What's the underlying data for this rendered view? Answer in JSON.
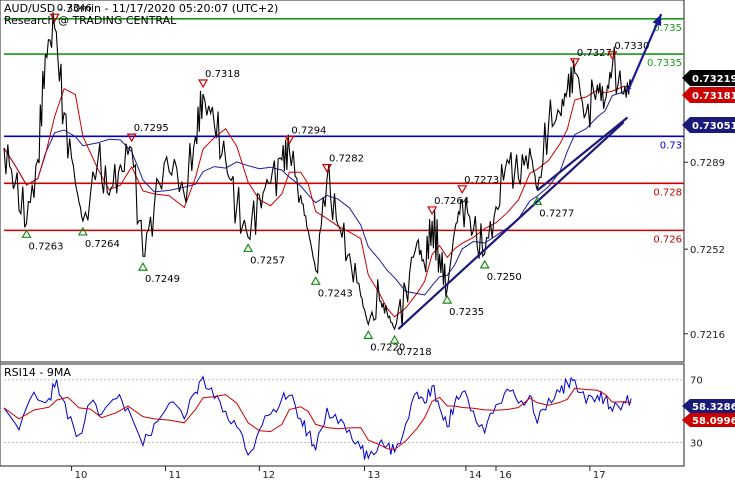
{
  "header": {
    "title": "AUD/USD - 30min - 11/17/2020 05:20:07 (UTC+2)",
    "watermark": "Research @ TRADING CENTRAL"
  },
  "colors": {
    "price": "#000000",
    "ma": "#cc0000",
    "ma_slow": "#1c1c9c",
    "level_green": "#1a9a1a",
    "level_blue": "#0000cc",
    "level_red": "#cc0000",
    "trend": "#1a1a7a",
    "arrow": "#1a1a9a",
    "rsi": "#0000cc",
    "rsi_ma": "#cc0000",
    "tag_price": "#000000",
    "tag_blue": "#1a1a7a",
    "tag_red": "#cc0000"
  },
  "chart_data": [
    {
      "type": "candlestick-line",
      "title": "AUD/USD - 30min - 11/17/2020 05:20:07 (UTC+2)",
      "x_ticks": [
        "10",
        "11",
        "12",
        "13",
        "14",
        "16",
        "17"
      ],
      "y_ticks": [
        "0.7289",
        "0.7252",
        "0.7216"
      ],
      "ylim": [
        0.7204,
        0.7358
      ],
      "levels": [
        {
          "value": 0.735,
          "label": "0.735",
          "color": "green"
        },
        {
          "value": 0.7335,
          "label": "0.7335",
          "color": "green"
        },
        {
          "value": 0.73,
          "label": "0.73",
          "color": "blue"
        },
        {
          "value": 0.728,
          "label": "0.728",
          "color": "red"
        },
        {
          "value": 0.726,
          "label": "0.726",
          "color": "red"
        }
      ],
      "price_tags": [
        {
          "label": "0.73219",
          "style": "price"
        },
        {
          "label": "0.73181",
          "style": "red"
        },
        {
          "label": "0.73051",
          "style": "blue"
        }
      ],
      "swing_highs": [
        {
          "x": 1.35,
          "value": 0.7346,
          "label": "0.7346"
        },
        {
          "x": 3.4,
          "value": 0.7295,
          "label": "0.7295"
        },
        {
          "x": 5.3,
          "value": 0.7318,
          "label": "0.7318"
        },
        {
          "x": 7.6,
          "value": 0.7294,
          "label": "0.7294"
        },
        {
          "x": 8.6,
          "value": 0.7282,
          "label": "0.7282"
        },
        {
          "x": 11.4,
          "value": 0.7264,
          "label": "0.7264"
        },
        {
          "x": 12.2,
          "value": 0.7273,
          "label": "0.7273"
        },
        {
          "x": 15.2,
          "value": 0.7327,
          "label": "0.7327"
        },
        {
          "x": 16.2,
          "value": 0.733,
          "label": "0.7330"
        }
      ],
      "swing_lows": [
        {
          "x": 0.6,
          "value": 0.7263,
          "label": "0.7263"
        },
        {
          "x": 2.1,
          "value": 0.7264,
          "label": "0.7264"
        },
        {
          "x": 3.7,
          "value": 0.7249,
          "label": "0.7249"
        },
        {
          "x": 6.5,
          "value": 0.7257,
          "label": "0.7257"
        },
        {
          "x": 8.3,
          "value": 0.7243,
          "label": "0.7243"
        },
        {
          "x": 9.7,
          "value": 0.722,
          "label": "0.7220"
        },
        {
          "x": 10.4,
          "value": 0.7218,
          "label": "0.7218"
        },
        {
          "x": 11.8,
          "value": 0.7235,
          "label": "0.7235"
        },
        {
          "x": 12.8,
          "value": 0.725,
          "label": "0.7250"
        },
        {
          "x": 14.2,
          "value": 0.7277,
          "label": "0.7277"
        }
      ],
      "price_path": [
        [
          0,
          0.7295
        ],
        [
          0.3,
          0.728
        ],
        [
          0.6,
          0.7263
        ],
        [
          0.9,
          0.729
        ],
        [
          1.1,
          0.7335
        ],
        [
          1.35,
          0.7346
        ],
        [
          1.6,
          0.731
        ],
        [
          1.9,
          0.728
        ],
        [
          2.1,
          0.7264
        ],
        [
          2.5,
          0.729
        ],
        [
          2.8,
          0.7275
        ],
        [
          3.1,
          0.7288
        ],
        [
          3.4,
          0.7295
        ],
        [
          3.7,
          0.7249
        ],
        [
          4.0,
          0.727
        ],
        [
          4.4,
          0.7285
        ],
        [
          4.8,
          0.7275
        ],
        [
          5.1,
          0.73
        ],
        [
          5.3,
          0.7318
        ],
        [
          5.6,
          0.7305
        ],
        [
          5.9,
          0.729
        ],
        [
          6.2,
          0.727
        ],
        [
          6.5,
          0.7257
        ],
        [
          6.8,
          0.7275
        ],
        [
          7.1,
          0.728
        ],
        [
          7.4,
          0.729
        ],
        [
          7.6,
          0.7294
        ],
        [
          7.9,
          0.7275
        ],
        [
          8.1,
          0.726
        ],
        [
          8.3,
          0.7243
        ],
        [
          8.6,
          0.7282
        ],
        [
          8.9,
          0.7262
        ],
        [
          9.2,
          0.725
        ],
        [
          9.5,
          0.7232
        ],
        [
          9.7,
          0.722
        ],
        [
          10.0,
          0.723
        ],
        [
          10.2,
          0.7225
        ],
        [
          10.4,
          0.7218
        ],
        [
          10.7,
          0.7235
        ],
        [
          11.0,
          0.7255
        ],
        [
          11.2,
          0.7245
        ],
        [
          11.4,
          0.7264
        ],
        [
          11.6,
          0.725
        ],
        [
          11.8,
          0.7235
        ],
        [
          12.0,
          0.726
        ],
        [
          12.2,
          0.7273
        ],
        [
          12.5,
          0.726
        ],
        [
          12.8,
          0.725
        ],
        [
          13.1,
          0.727
        ],
        [
          13.4,
          0.729
        ],
        [
          13.7,
          0.7282
        ],
        [
          14.0,
          0.7295
        ],
        [
          14.2,
          0.7277
        ],
        [
          14.5,
          0.7305
        ],
        [
          14.8,
          0.731
        ],
        [
          15.0,
          0.732
        ],
        [
          15.2,
          0.7327
        ],
        [
          15.5,
          0.731
        ],
        [
          15.8,
          0.7322
        ],
        [
          16.0,
          0.7315
        ],
        [
          16.2,
          0.733
        ],
        [
          16.5,
          0.7318
        ],
        [
          16.7,
          0.7322
        ]
      ],
      "rsi": {
        "label": "RSI14 - 9MA",
        "y_ticks": [
          "70",
          "30"
        ],
        "ylim": [
          15,
          80
        ],
        "tags": [
          {
            "label": "58.3286",
            "style": "blue"
          },
          {
            "label": "58.0996",
            "style": "red"
          }
        ],
        "rsi_path": [
          [
            0,
            52
          ],
          [
            0.4,
            38
          ],
          [
            0.8,
            62
          ],
          [
            1.2,
            58
          ],
          [
            1.4,
            70
          ],
          [
            1.7,
            45
          ],
          [
            2.0,
            35
          ],
          [
            2.3,
            55
          ],
          [
            2.6,
            48
          ],
          [
            3.0,
            58
          ],
          [
            3.3,
            52
          ],
          [
            3.7,
            28
          ],
          [
            4.0,
            42
          ],
          [
            4.4,
            55
          ],
          [
            4.8,
            45
          ],
          [
            5.1,
            62
          ],
          [
            5.3,
            72
          ],
          [
            5.6,
            58
          ],
          [
            5.9,
            50
          ],
          [
            6.2,
            40
          ],
          [
            6.5,
            22
          ],
          [
            6.8,
            38
          ],
          [
            7.1,
            48
          ],
          [
            7.4,
            58
          ],
          [
            7.6,
            60
          ],
          [
            7.9,
            45
          ],
          [
            8.1,
            36
          ],
          [
            8.3,
            25
          ],
          [
            8.6,
            52
          ],
          [
            8.9,
            42
          ],
          [
            9.2,
            38
          ],
          [
            9.5,
            26
          ],
          [
            9.7,
            20
          ],
          [
            10.0,
            30
          ],
          [
            10.2,
            28
          ],
          [
            10.4,
            24
          ],
          [
            10.7,
            42
          ],
          [
            11.0,
            62
          ],
          [
            11.2,
            55
          ],
          [
            11.4,
            66
          ],
          [
            11.6,
            52
          ],
          [
            11.8,
            40
          ],
          [
            12.0,
            55
          ],
          [
            12.2,
            62
          ],
          [
            12.5,
            50
          ],
          [
            12.8,
            36
          ],
          [
            13.1,
            54
          ],
          [
            13.4,
            64
          ],
          [
            13.7,
            55
          ],
          [
            14.0,
            60
          ],
          [
            14.2,
            42
          ],
          [
            14.5,
            58
          ],
          [
            14.8,
            62
          ],
          [
            15.0,
            68
          ],
          [
            15.2,
            70
          ],
          [
            15.5,
            55
          ],
          [
            15.8,
            60
          ],
          [
            16.0,
            58
          ],
          [
            16.2,
            50
          ],
          [
            16.5,
            56
          ],
          [
            16.7,
            58
          ]
        ]
      }
    }
  ]
}
